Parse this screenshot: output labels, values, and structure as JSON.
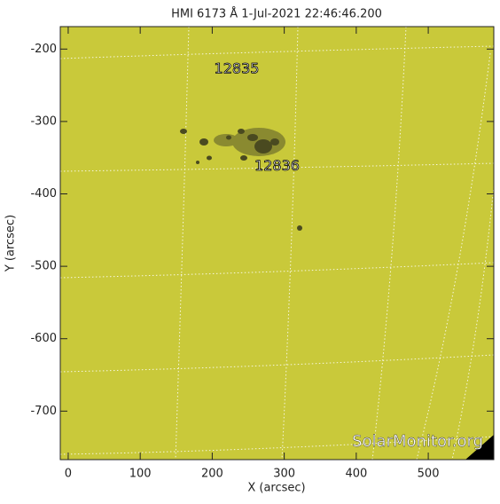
{
  "chart_data": {
    "type": "image",
    "title": "HMI 6173 Å  1-Jul-2021 22:46:46.200",
    "xlabel": "X (arcsec)",
    "ylabel": "Y (arcsec)",
    "xlim": [
      -11,
      591
    ],
    "ylim": [
      -767,
      -169
    ],
    "xticks": [
      0,
      100,
      200,
      300,
      400,
      500
    ],
    "yticks": [
      -200,
      -300,
      -400,
      -500,
      -600,
      -700
    ],
    "annotations": [
      {
        "text": "12835",
        "x": 234,
        "y": -228
      },
      {
        "text": "12836",
        "x": 290,
        "y": -362
      }
    ],
    "watermark": "SolarMonitor.org",
    "color": "#c9c93a"
  }
}
